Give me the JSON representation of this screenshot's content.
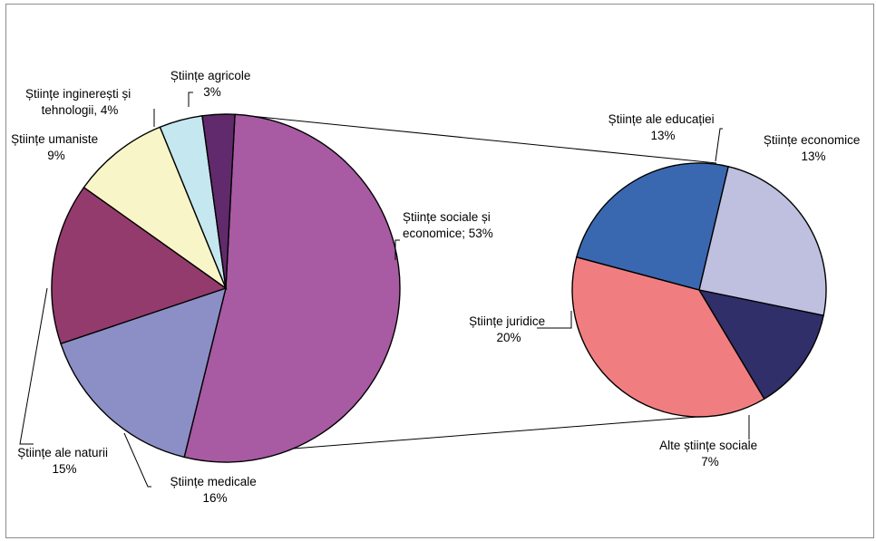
{
  "chart_data": [
    {
      "type": "pie",
      "role": "main",
      "title": "",
      "slices": [
        {
          "name": "Științe sociale și economice",
          "label": "Științe sociale și economice; 53%",
          "value": 53,
          "color": "#a85aa3"
        },
        {
          "name": "Științe medicale",
          "label": "Științe medicale 16%",
          "value": 16,
          "color": "#8b8fc6"
        },
        {
          "name": "Științe ale naturii",
          "label": "Științe ale naturii 15%",
          "value": 15,
          "color": "#943b6d"
        },
        {
          "name": "Științe umaniste",
          "label": "Științe umaniste 9%",
          "value": 9,
          "color": "#f8f6c8"
        },
        {
          "name": "Științe inginerești și tehnologii",
          "label": "Științe inginerești și tehnologii, 4%",
          "value": 4,
          "color": "#c5e7ef"
        },
        {
          "name": "Științe agricole",
          "label": "Științe agricole 3%",
          "value": 3,
          "color": "#612a6c"
        }
      ],
      "labels": {
        "social_line1": "Științe sociale și",
        "social_line2": "economice; 53%",
        "medical_line1": "Științe medicale",
        "medical_line2": "16%",
        "natural_line1": "Științe ale naturii",
        "natural_line2": "15%",
        "umaniste_line1": "Științe umaniste",
        "umaniste_line2": "9%",
        "inginer_line1": "Științe inginerești și",
        "inginer_line2": "tehnologii, 4%",
        "agricole_line1": "Științe agricole",
        "agricole_line2": "3%"
      }
    },
    {
      "type": "pie",
      "role": "breakdown",
      "title": "",
      "slices": [
        {
          "name": "Științe ale educației",
          "label": "Științe ale educației 13%",
          "value": 13,
          "color": "#3a68b0"
        },
        {
          "name": "Științe economice",
          "label": "Științe economice 13%",
          "value": 13,
          "color": "#bfbfdf"
        },
        {
          "name": "Alte științe sociale",
          "label": "Alte științe sociale 7%",
          "value": 7,
          "color": "#302f6a"
        },
        {
          "name": "Științe juridice",
          "label": "Științe juridice 20%",
          "value": 20,
          "color": "#f07e80"
        }
      ],
      "labels": {
        "educatie_line1": "Științe ale educației",
        "educatie_line2": "13%",
        "economice_line1": "Științe economice",
        "economice_line2": "13%",
        "alte_line1": "Alte științe sociale",
        "alte_line2": "7%",
        "juridice_line1": "Științe juridice",
        "juridice_line2": "20%"
      }
    }
  ]
}
